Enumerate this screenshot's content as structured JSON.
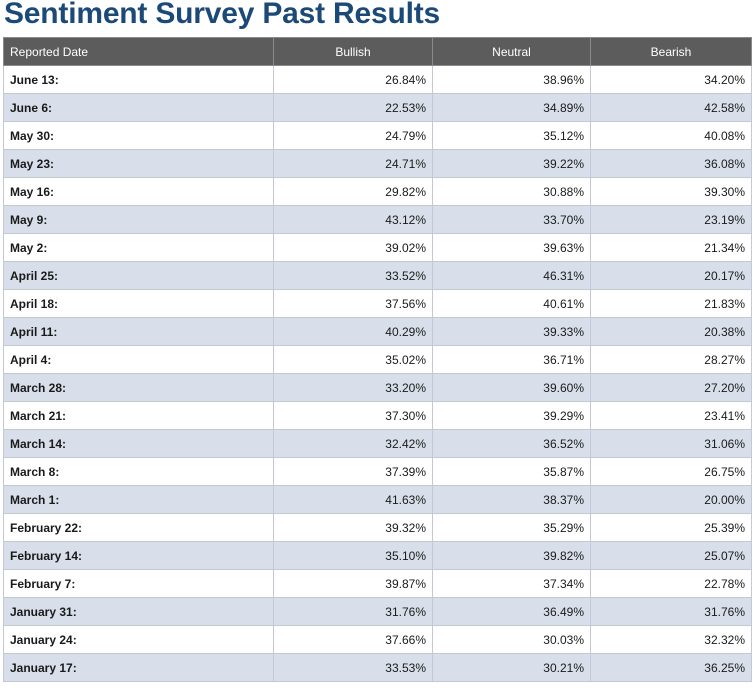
{
  "page": {
    "title": "Sentiment Survey Past Results"
  },
  "table": {
    "headers": {
      "date": "Reported Date",
      "bullish": "Bullish",
      "neutral": "Neutral",
      "bearish": "Bearish"
    },
    "rows": [
      {
        "date": "June 13:",
        "bullish": "26.84%",
        "neutral": "38.96%",
        "bearish": "34.20%"
      },
      {
        "date": "June 6:",
        "bullish": "22.53%",
        "neutral": "34.89%",
        "bearish": "42.58%"
      },
      {
        "date": "May 30:",
        "bullish": "24.79%",
        "neutral": "35.12%",
        "bearish": "40.08%"
      },
      {
        "date": "May 23:",
        "bullish": "24.71%",
        "neutral": "39.22%",
        "bearish": "36.08%"
      },
      {
        "date": "May 16:",
        "bullish": "29.82%",
        "neutral": "30.88%",
        "bearish": "39.30%"
      },
      {
        "date": "May 9:",
        "bullish": "43.12%",
        "neutral": "33.70%",
        "bearish": "23.19%"
      },
      {
        "date": "May 2:",
        "bullish": "39.02%",
        "neutral": "39.63%",
        "bearish": "21.34%"
      },
      {
        "date": "April 25:",
        "bullish": "33.52%",
        "neutral": "46.31%",
        "bearish": "20.17%"
      },
      {
        "date": "April 18:",
        "bullish": "37.56%",
        "neutral": "40.61%",
        "bearish": "21.83%"
      },
      {
        "date": "April 11:",
        "bullish": "40.29%",
        "neutral": "39.33%",
        "bearish": "20.38%"
      },
      {
        "date": "April 4:",
        "bullish": "35.02%",
        "neutral": "36.71%",
        "bearish": "28.27%"
      },
      {
        "date": "March 28:",
        "bullish": "33.20%",
        "neutral": "39.60%",
        "bearish": "27.20%"
      },
      {
        "date": "March 21:",
        "bullish": "37.30%",
        "neutral": "39.29%",
        "bearish": "23.41%"
      },
      {
        "date": "March 14:",
        "bullish": "32.42%",
        "neutral": "36.52%",
        "bearish": "31.06%"
      },
      {
        "date": "March 8:",
        "bullish": "37.39%",
        "neutral": "35.87%",
        "bearish": "26.75%"
      },
      {
        "date": "March 1:",
        "bullish": "41.63%",
        "neutral": "38.37%",
        "bearish": "20.00%"
      },
      {
        "date": "February 22:",
        "bullish": "39.32%",
        "neutral": "35.29%",
        "bearish": "25.39%"
      },
      {
        "date": "February 14:",
        "bullish": "35.10%",
        "neutral": "39.82%",
        "bearish": "25.07%"
      },
      {
        "date": "February 7:",
        "bullish": "39.87%",
        "neutral": "37.34%",
        "bearish": "22.78%"
      },
      {
        "date": "January 31:",
        "bullish": "31.76%",
        "neutral": "36.49%",
        "bearish": "31.76%"
      },
      {
        "date": "January 24:",
        "bullish": "37.66%",
        "neutral": "30.03%",
        "bearish": "32.32%"
      },
      {
        "date": "January 17:",
        "bullish": "33.53%",
        "neutral": "30.21%",
        "bearish": "36.25%"
      }
    ]
  },
  "colors": {
    "title": "#1c4a78",
    "header_bg": "#5c5c5c",
    "row_alt_bg": "#d8dfea",
    "highlight": "#2fae4d"
  }
}
